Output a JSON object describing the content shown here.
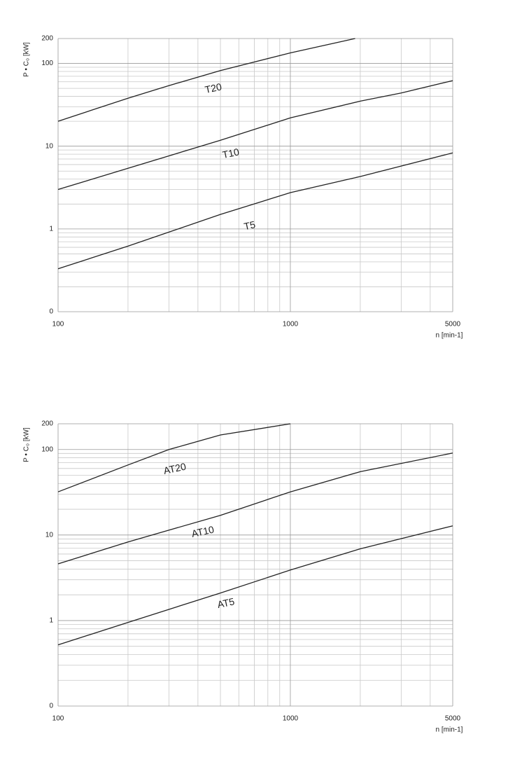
{
  "chart_data": [
    {
      "type": "line",
      "ylabel": "P • C₀  [kW]",
      "xlabel": "n [min-1]",
      "xscale": "log",
      "yscale": "log",
      "grid": true,
      "color": "#222",
      "xlim": [
        100,
        5000
      ],
      "xticks": [
        100,
        1000,
        5000
      ],
      "ylim": [
        0.1,
        200
      ],
      "yticks": [
        {
          "value": 0.1,
          "label": "0"
        },
        1,
        10,
        100,
        200
      ],
      "xgrid_minor": [
        200,
        300,
        400,
        500,
        600,
        700,
        800,
        900,
        2000,
        3000,
        4000
      ],
      "ygrid_minor": [
        0.2,
        0.3,
        0.4,
        0.5,
        0.6,
        0.7,
        0.8,
        0.9,
        2,
        3,
        4,
        5,
        6,
        7,
        8,
        9,
        20,
        30,
        40,
        50,
        60,
        70,
        80,
        90
      ],
      "series": [
        {
          "name": "T20",
          "x": [
            100,
            200,
            300,
            500,
            1000,
            1900
          ],
          "values": [
            20,
            38,
            54,
            82,
            134,
            200
          ]
        },
        {
          "name": "T10",
          "x": [
            100,
            200,
            500,
            1000,
            2000,
            3000,
            5000
          ],
          "values": [
            3,
            5.4,
            11.8,
            22,
            35,
            44,
            62
          ]
        },
        {
          "name": "T5",
          "x": [
            100,
            200,
            500,
            1000,
            2000,
            5000
          ],
          "values": [
            0.33,
            0.62,
            1.5,
            2.75,
            4.3,
            8.3
          ]
        }
      ]
    },
    {
      "type": "line",
      "ylabel": "P • C₀  [kW]",
      "xlabel": "n [min-1]",
      "xscale": "log",
      "yscale": "log",
      "grid": true,
      "color": "#222",
      "xlim": [
        100,
        5000
      ],
      "xticks": [
        100,
        1000,
        5000
      ],
      "ylim": [
        0.1,
        200
      ],
      "yticks": [
        {
          "value": 0.1,
          "label": "0"
        },
        1,
        10,
        100,
        200
      ],
      "xgrid_minor": [
        200,
        300,
        400,
        500,
        600,
        700,
        800,
        900,
        2000,
        3000,
        4000
      ],
      "ygrid_minor": [
        0.2,
        0.3,
        0.4,
        0.5,
        0.6,
        0.7,
        0.8,
        0.9,
        2,
        3,
        4,
        5,
        6,
        7,
        8,
        9,
        20,
        30,
        40,
        50,
        60,
        70,
        80,
        90
      ],
      "series": [
        {
          "name": "AT20",
          "x": [
            100,
            200,
            300,
            500,
            1000
          ],
          "values": [
            32,
            66,
            100,
            148,
            200
          ]
        },
        {
          "name": "AT10",
          "x": [
            100,
            200,
            500,
            1000,
            2000,
            5000
          ],
          "values": [
            4.6,
            8.3,
            17,
            32,
            55,
            91
          ]
        },
        {
          "name": "AT5",
          "x": [
            100,
            200,
            500,
            1000,
            2000,
            5000
          ],
          "values": [
            0.52,
            0.95,
            2.1,
            3.9,
            6.9,
            12.8
          ]
        }
      ]
    }
  ]
}
